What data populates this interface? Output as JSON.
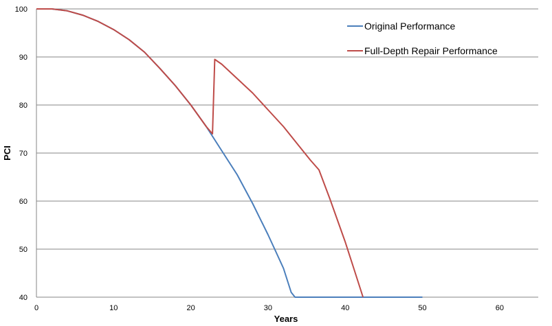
{
  "chart_data": {
    "type": "line",
    "xlabel": "Years",
    "ylabel": "PCI",
    "xlim": [
      0,
      65
    ],
    "ylim": [
      40,
      100
    ],
    "x_ticks": [
      0,
      10,
      20,
      30,
      40,
      50,
      60
    ],
    "y_ticks": [
      40,
      50,
      60,
      70,
      80,
      90,
      100
    ],
    "grid": "horizontal",
    "legend_position": "top-right",
    "series": [
      {
        "name": "Original Performance",
        "color": "#4a7ebb",
        "points": [
          [
            0,
            100
          ],
          [
            2,
            100
          ],
          [
            4,
            99.6
          ],
          [
            6,
            98.7
          ],
          [
            8,
            97.4
          ],
          [
            10,
            95.7
          ],
          [
            12,
            93.6
          ],
          [
            14,
            91.0
          ],
          [
            16,
            87.6
          ],
          [
            18,
            84.0
          ],
          [
            20,
            80.0
          ],
          [
            22,
            75.5
          ],
          [
            23,
            73.0
          ],
          [
            24,
            70.5
          ],
          [
            26,
            65.5
          ],
          [
            28,
            59.5
          ],
          [
            30,
            53.0
          ],
          [
            31,
            49.5
          ],
          [
            32,
            46.0
          ],
          [
            33,
            41.0
          ],
          [
            33.5,
            40.0
          ],
          [
            40,
            40.0
          ],
          [
            50,
            40.0
          ]
        ]
      },
      {
        "name": "Full-Depth Repair Performance",
        "color": "#be4b48",
        "points": [
          [
            0,
            100
          ],
          [
            2,
            100
          ],
          [
            4,
            99.6
          ],
          [
            6,
            98.7
          ],
          [
            8,
            97.4
          ],
          [
            10,
            95.7
          ],
          [
            12,
            93.6
          ],
          [
            14,
            91.0
          ],
          [
            16,
            87.6
          ],
          [
            18,
            84.0
          ],
          [
            20,
            80.0
          ],
          [
            22,
            75.5
          ],
          [
            22.8,
            74.0
          ],
          [
            23.1,
            89.5
          ],
          [
            24,
            88.5
          ],
          [
            26,
            85.5
          ],
          [
            28,
            82.5
          ],
          [
            30,
            79.0
          ],
          [
            32,
            75.5
          ],
          [
            34,
            71.5
          ],
          [
            35.5,
            68.5
          ],
          [
            36.6,
            66.5
          ],
          [
            38,
            60.5
          ],
          [
            40,
            51.5
          ],
          [
            41,
            46.5
          ],
          [
            42.3,
            40.0
          ]
        ]
      }
    ]
  }
}
